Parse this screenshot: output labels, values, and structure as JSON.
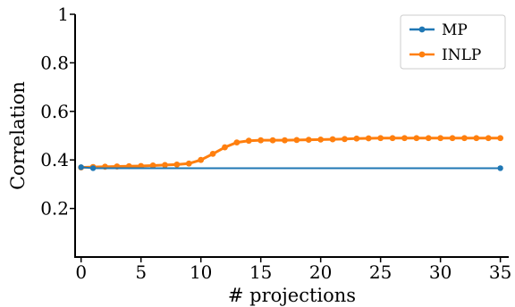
{
  "chart_data": {
    "type": "line",
    "xlabel": "# projections",
    "ylabel": "Correlation",
    "xlim": [
      -0.5,
      35.7
    ],
    "ylim": [
      0,
      1
    ],
    "xticks": [
      0,
      5,
      10,
      15,
      20,
      25,
      30,
      35
    ],
    "yticks": [
      0.2,
      0.4,
      0.6,
      0.8,
      1
    ],
    "ytick_labels": [
      "0.2",
      "0.4",
      "0.6",
      "0.8",
      "1"
    ],
    "grid": false,
    "legend_position": "top-right",
    "series": [
      {
        "name": "MP",
        "color": "#1f77b4",
        "marker": "circle",
        "x": [
          0,
          1,
          35
        ],
        "y": [
          0.37,
          0.366,
          0.366
        ]
      },
      {
        "name": "INLP",
        "color": "#ff7f0e",
        "marker": "circle",
        "x": [
          0,
          1,
          2,
          3,
          4,
          5,
          6,
          7,
          8,
          9,
          10,
          11,
          12,
          13,
          14,
          15,
          16,
          17,
          18,
          19,
          20,
          21,
          22,
          23,
          24,
          25,
          26,
          27,
          28,
          29,
          30,
          31,
          32,
          33,
          34,
          35
        ],
        "y": [
          0.369,
          0.371,
          0.372,
          0.373,
          0.374,
          0.375,
          0.377,
          0.379,
          0.381,
          0.385,
          0.4,
          0.425,
          0.452,
          0.472,
          0.479,
          0.481,
          0.481,
          0.481,
          0.482,
          0.483,
          0.484,
          0.485,
          0.486,
          0.488,
          0.489,
          0.49,
          0.49,
          0.49,
          0.49,
          0.49,
          0.49,
          0.49,
          0.49,
          0.49,
          0.49,
          0.49
        ]
      }
    ]
  }
}
